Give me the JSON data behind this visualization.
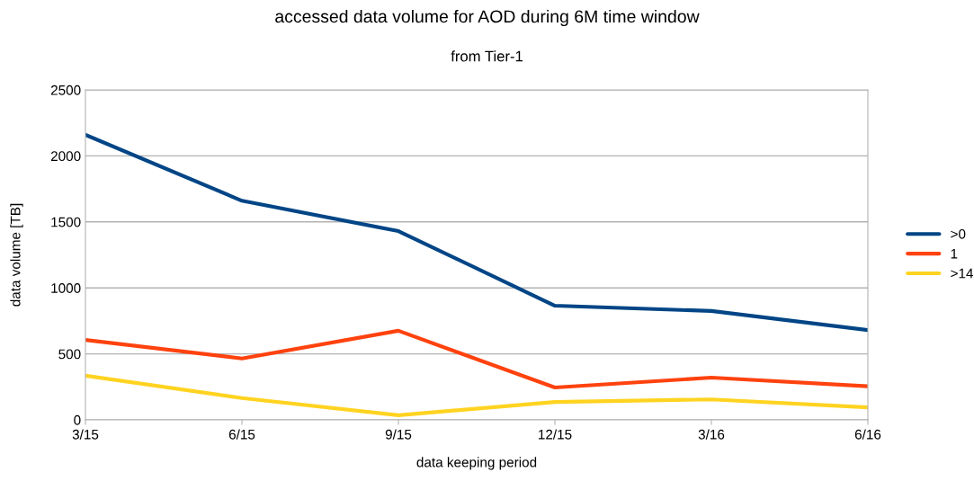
{
  "chart_data": {
    "type": "line",
    "title": "accessed data volume for AOD during 6M time window",
    "subtitle": "from Tier-1",
    "xlabel": "data keeping period",
    "ylabel": "data volume [TB]",
    "categories": [
      "3/15",
      "6/15",
      "9/15",
      "12/15",
      "3/16",
      "6/16"
    ],
    "series": [
      {
        "name": ">0",
        "color": "#004586",
        "values": [
          2160,
          1660,
          1430,
          865,
          825,
          680
        ]
      },
      {
        "name": "1",
        "color": "#ff420e",
        "values": [
          605,
          465,
          675,
          245,
          320,
          255
        ]
      },
      {
        "name": ">14",
        "color": "#ffd320",
        "values": [
          335,
          165,
          35,
          135,
          155,
          95
        ]
      }
    ],
    "ylim": [
      0,
      2500
    ],
    "yticks": [
      0,
      500,
      1000,
      1500,
      2000,
      2500
    ],
    "grid": "y",
    "legend": "right",
    "marker": "none",
    "line_style": "solid"
  }
}
